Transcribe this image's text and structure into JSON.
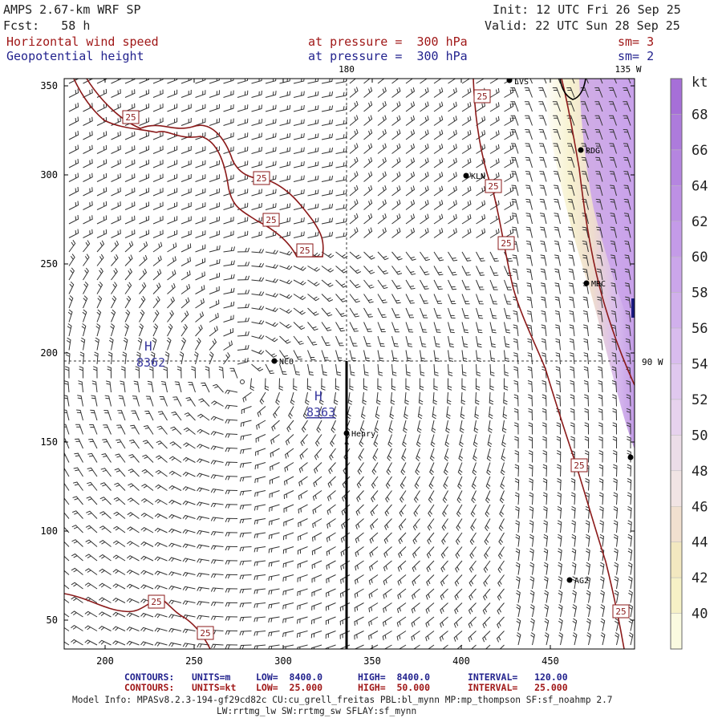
{
  "header": {
    "model": "AMPS 2.67-km WRF SP",
    "fcst": "Fcst:   58 h",
    "init": "Init: 12 UTC Fri 26 Sep 25",
    "valid": "Valid: 22 UTC Sun 28 Sep 25",
    "field1_name": "Horizontal wind speed",
    "field1_level": "at pressure =  300 hPa",
    "field1_sm": "sm= 3",
    "field2_name": "Geopotential height",
    "field2_level": "at pressure =  300 hPa",
    "field2_sm": "sm= 2"
  },
  "map": {
    "meridian_180": "180",
    "meridian_135w": "135 W",
    "meridian_90w": "90 W",
    "x_ticks": [
      "200",
      "250",
      "300",
      "350",
      "400",
      "450"
    ],
    "y_ticks": [
      "350",
      "300",
      "250",
      "200",
      "150",
      "100",
      "50"
    ],
    "highs": [
      {
        "letter": "H",
        "value": "8362"
      },
      {
        "letter": "H",
        "value": "8363"
      }
    ],
    "contour_label": "25",
    "stations": [
      {
        "name": "LVS"
      },
      {
        "name": "RDG"
      },
      {
        "name": "KLN"
      },
      {
        "name": "MRC"
      },
      {
        "name": "NCO"
      },
      {
        "name": "Henry"
      },
      {
        "name": "AG2"
      }
    ]
  },
  "colorbar": {
    "unit": "kt",
    "labels": [
      "68",
      "66",
      "64",
      "62",
      "60",
      "58",
      "56",
      "54",
      "52",
      "50",
      "48",
      "46",
      "44",
      "42",
      "40"
    ],
    "colors": {
      "40": "#fafae0",
      "42": "#f6f1c6",
      "44": "#f3e8c0",
      "46": "#f1e0cf",
      "48": "#f1e4e4",
      "50": "#ecdde8",
      "52": "#e7d2ee",
      "54": "#e0c8ef",
      "56": "#d9bcee",
      "58": "#d1b0ec",
      "60": "#cba6ea",
      "62": "#c49be8",
      "64": "#bd90e4",
      "66": "#b585e0",
      "68": "#ad7bdc"
    }
  },
  "footer": {
    "row1_name": "CONTOURS:",
    "row1_units": "UNITS=m",
    "row1_low": "LOW=  8400.0",
    "row1_high": "HIGH=  8400.0",
    "row1_interval": "INTERVAL=   120.00",
    "row2_name": "CONTOURS:",
    "row2_units": "UNITS=kt",
    "row2_low": "LOW=  25.000",
    "row2_high": "HIGH=  50.000",
    "row2_interval": "INTERVAL=   25.000",
    "model_info": "Model Info: MPASv8.2.3-194-gf29cd82c CU:cu_grell_freitas PBL:bl_mynn MP:mp_thompson SF:sf_noahmp 2.7",
    "model_info2": "LW:rrtmg_lw SW:rrtmg_sw SFLAY:sf_mynn"
  }
}
